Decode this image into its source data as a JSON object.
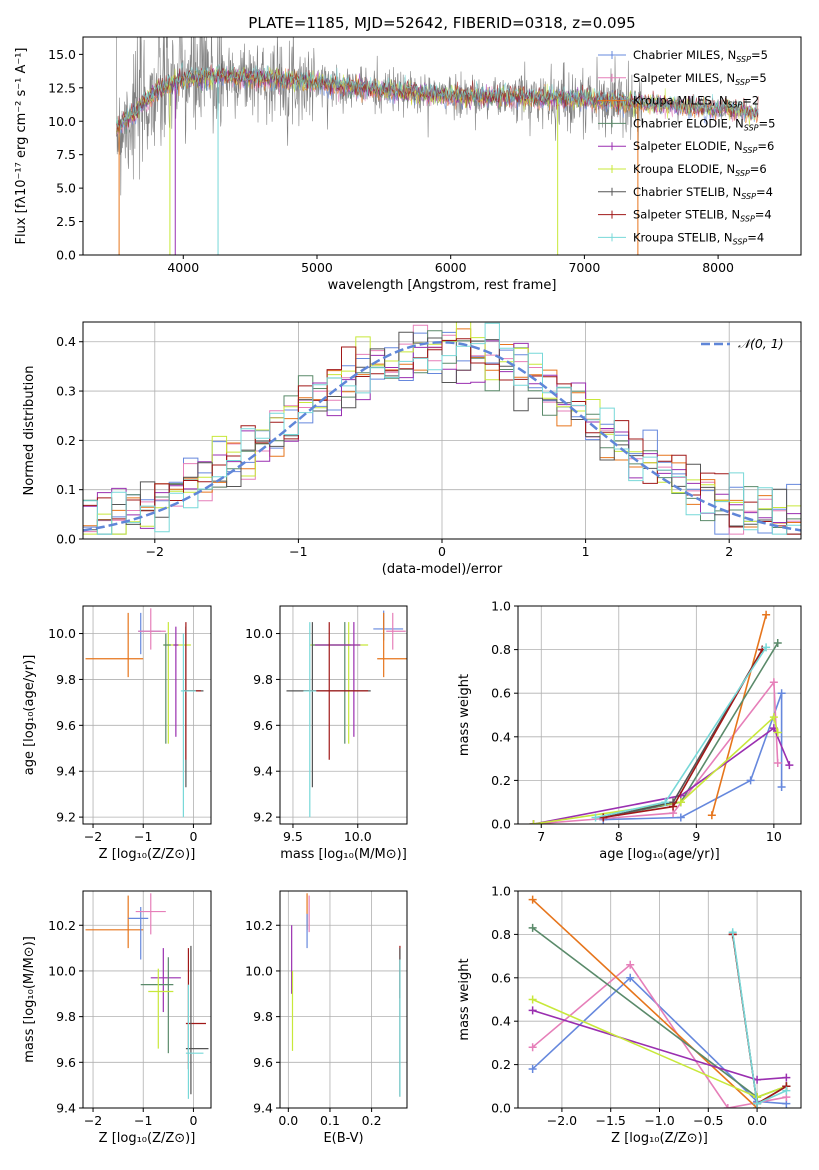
{
  "colors": {
    "chabrier_miles": "#6688dd",
    "salpeter_miles": "#e67fb9",
    "kroupa_miles": "#e6751c",
    "chabrier_elodie": "#5a8a6a",
    "salpeter_elodie": "#9a2fb0",
    "kroupa_elodie": "#c8e83a",
    "chabrier_stelib": "#555555",
    "salpeter_stelib": "#a01818",
    "kroupa_stelib": "#77d8d8",
    "grid": "#b0b0b0",
    "normal": "#5f86d8",
    "data": "#808080"
  },
  "legend_models": [
    {
      "key": "chabrier_miles",
      "label": "Chabrier MILES, N",
      "sub": "SSP",
      "tail": "=5"
    },
    {
      "key": "salpeter_miles",
      "label": "Salpeter MILES, N",
      "sub": "SSP",
      "tail": "=5"
    },
    {
      "key": "kroupa_miles",
      "label": "Kroupa MILES, N",
      "sub": "SSP",
      "tail": "=2"
    },
    {
      "key": "chabrier_elodie",
      "label": "Chabrier ELODIE, N",
      "sub": "SSP",
      "tail": "=5"
    },
    {
      "key": "salpeter_elodie",
      "label": "Salpeter ELODIE, N",
      "sub": "SSP",
      "tail": "=6"
    },
    {
      "key": "kroupa_elodie",
      "label": "Kroupa ELODIE, N",
      "sub": "SSP",
      "tail": "=6"
    },
    {
      "key": "chabrier_stelib",
      "label": "Chabrier STELIB, N",
      "sub": "SSP",
      "tail": "=4"
    },
    {
      "key": "salpeter_stelib",
      "label": "Salpeter STELIB, N",
      "sub": "SSP",
      "tail": "=4"
    },
    {
      "key": "kroupa_stelib",
      "label": "Kroupa STELIB, N",
      "sub": "SSP",
      "tail": "=4"
    }
  ],
  "chart_data": [
    {
      "id": "spectrum",
      "type": "line",
      "title": "PLATE=1185, MJD=52642, FIBERID=0318, z=0.095",
      "xlabel": "wavelength [Angstrom, rest frame]",
      "ylabel": "Flux [fλ10⁻¹⁷ erg cm⁻² s⁻¹ A⁻¹]",
      "xlim": [
        3250,
        8620
      ],
      "ylim": [
        0,
        16.3
      ],
      "xticks": [
        "4000",
        "5000",
        "6000",
        "7000",
        "8000"
      ],
      "xtick_values": [
        4000,
        5000,
        6000,
        7000,
        8000
      ],
      "yticks": [
        "0.0",
        "2.5",
        "5.0",
        "7.5",
        "10.0",
        "12.5",
        "15.0"
      ],
      "ytick_values": [
        0,
        2.5,
        5,
        7.5,
        10,
        12.5,
        15
      ],
      "grid": false,
      "legend_position": "right",
      "continuum_model": {
        "x": [
          3500,
          3600,
          3800,
          4000,
          4300,
          4600,
          5000,
          5500,
          6000,
          6500,
          7000,
          7500,
          8000,
          8300
        ],
        "y": [
          9.5,
          10.3,
          12.2,
          13.2,
          13.4,
          13.2,
          12.9,
          12.3,
          11.9,
          11.8,
          11.6,
          11.3,
          10.9,
          10.7
        ]
      }
    },
    {
      "id": "residuals",
      "type": "bar",
      "xlabel": "(data-model)/error",
      "ylabel": "Normed distribution",
      "xlim": [
        -2.5,
        2.5
      ],
      "ylim": [
        0,
        0.44
      ],
      "xticks": [
        "−2",
        "−1",
        "0",
        "1",
        "2"
      ],
      "xtick_values": [
        -2,
        -1,
        0,
        1,
        2
      ],
      "yticks": [
        "0.0",
        "0.1",
        "0.2",
        "0.3",
        "0.4"
      ],
      "ytick_values": [
        0,
        0.1,
        0.2,
        0.3,
        0.4
      ],
      "grid": true,
      "legend": "𝒩(0, 1)",
      "legend_position": "top-right",
      "normal_curve": {
        "mean": 0,
        "sigma": 1
      },
      "bin_width": 0.1
    },
    {
      "id": "age_vs_Z",
      "type": "scatter",
      "xlabel": "Z [log₁₀(Z/Z⊙)]",
      "ylabel": "age  [log₁₀(age/yr)]",
      "xlim": [
        -2.2,
        0.35
      ],
      "ylim": [
        9.17,
        10.12
      ],
      "xticks": [
        "−2",
        "−1",
        "0"
      ],
      "xtick_values": [
        -2,
        -1,
        0
      ],
      "yticks": [
        "9.2",
        "9.4",
        "9.6",
        "9.8",
        "10.0"
      ],
      "ytick_values": [
        9.2,
        9.4,
        9.6,
        9.8,
        10.0
      ],
      "grid": true,
      "points": [
        {
          "key": "kroupa_miles",
          "x": -1.3,
          "y": 9.89,
          "xerr": [
            0.85,
            0.3
          ],
          "yerr": [
            0.08,
            0.2
          ]
        },
        {
          "key": "chabrier_miles",
          "x": -1.05,
          "y": 10.01,
          "xerr": [
            0.05,
            0.4
          ],
          "yerr": [
            0.1,
            0.08
          ]
        },
        {
          "key": "salpeter_miles",
          "x": -0.85,
          "y": 10.01,
          "xerr": [
            0.25,
            0.3
          ],
          "yerr": [
            0.08,
            0.1
          ]
        },
        {
          "key": "kroupa_elodie",
          "x": -0.5,
          "y": 9.95,
          "xerr": [
            0.1,
            0.45
          ],
          "yerr": [
            0.43,
            0.1
          ]
        },
        {
          "key": "chabrier_elodie",
          "x": -0.55,
          "y": 9.95,
          "xerr": [
            0.05,
            0.1
          ],
          "yerr": [
            0.43,
            0.05
          ]
        },
        {
          "key": "salpeter_elodie",
          "x": -0.35,
          "y": 9.95,
          "xerr": [
            0.05,
            0.05
          ],
          "yerr": [
            0.4,
            0.08
          ]
        },
        {
          "key": "chabrier_stelib",
          "x": -0.15,
          "y": 9.75,
          "xerr": [
            0.05,
            0.35
          ],
          "yerr": [
            0.42,
            0.28
          ]
        },
        {
          "key": "salpeter_stelib",
          "x": -0.15,
          "y": 9.75,
          "xerr": [
            0.05,
            0.3
          ],
          "yerr": [
            0.3,
            0.3
          ]
        },
        {
          "key": "kroupa_stelib",
          "x": -0.2,
          "y": 9.75,
          "xerr": [
            0.05,
            0.25
          ],
          "yerr": [
            0.55,
            0.25
          ]
        }
      ]
    },
    {
      "id": "age_vs_mass",
      "type": "scatter",
      "xlabel": "mass [log₁₀(M/M⊙)]",
      "ylabel": "",
      "xlim": [
        9.4,
        10.38
      ],
      "ylim": [
        9.17,
        10.12
      ],
      "xticks": [
        "9.5",
        "10.0"
      ],
      "xtick_values": [
        9.5,
        10.0
      ],
      "yticks": [
        "9.2",
        "9.4",
        "9.6",
        "9.8",
        "10.0"
      ],
      "ytick_values": [
        9.2,
        9.4,
        9.6,
        9.8,
        10.0
      ],
      "grid": true,
      "points": [
        {
          "key": "chabrier_miles",
          "x": 10.2,
          "y": 10.02,
          "xerr": [
            0.08,
            0.15
          ],
          "yerr": [
            0.05,
            0.08
          ]
        },
        {
          "key": "salpeter_miles",
          "x": 10.27,
          "y": 10.01,
          "xerr": [
            0.05,
            0.1
          ],
          "yerr": [
            0.08,
            0.08
          ]
        },
        {
          "key": "kroupa_miles",
          "x": 10.2,
          "y": 9.89,
          "xerr": [
            0.05,
            0.2
          ],
          "yerr": [
            0.08,
            0.2
          ]
        },
        {
          "key": "kroupa_elodie",
          "x": 9.93,
          "y": 9.95,
          "xerr": [
            0.3,
            0.15
          ],
          "yerr": [
            0.43,
            0.1
          ]
        },
        {
          "key": "chabrier_elodie",
          "x": 9.9,
          "y": 9.95,
          "xerr": [
            0.25,
            0.05
          ],
          "yerr": [
            0.43,
            0.1
          ]
        },
        {
          "key": "salpeter_elodie",
          "x": 9.97,
          "y": 9.95,
          "xerr": [
            0.3,
            0.05
          ],
          "yerr": [
            0.4,
            0.1
          ]
        },
        {
          "key": "chabrier_stelib",
          "x": 9.65,
          "y": 9.75,
          "xerr": [
            0.2,
            0.45
          ],
          "yerr": [
            0.42,
            0.3
          ]
        },
        {
          "key": "salpeter_stelib",
          "x": 9.78,
          "y": 9.75,
          "xerr": [
            0.2,
            0.3
          ],
          "yerr": [
            0.3,
            0.3
          ]
        },
        {
          "key": "kroupa_stelib",
          "x": 9.63,
          "y": 9.75,
          "xerr": [
            0.05,
            0.05
          ],
          "yerr": [
            0.55,
            0.3
          ]
        }
      ]
    },
    {
      "id": "massweight_vs_age",
      "type": "line",
      "xlabel": "age  [log₁₀(age/yr)]",
      "ylabel": "mass weight",
      "xlim": [
        6.7,
        10.35
      ],
      "ylim": [
        0,
        1.0
      ],
      "xticks": [
        "7",
        "8",
        "9",
        "10"
      ],
      "xtick_values": [
        7,
        8,
        9,
        10
      ],
      "yticks": [
        "0.0",
        "0.2",
        "0.4",
        "0.6",
        "0.8",
        "1.0"
      ],
      "ytick_values": [
        0,
        0.2,
        0.4,
        0.6,
        0.8,
        1.0
      ],
      "grid": true,
      "series": [
        {
          "key": "chabrier_miles",
          "x": [
            7.8,
            8.8,
            9.7,
            10.1,
            10.1
          ],
          "y": [
            0.02,
            0.03,
            0.2,
            0.6,
            0.17
          ]
        },
        {
          "key": "salpeter_miles",
          "x": [
            6.9,
            8.7,
            10.0,
            10.05
          ],
          "y": [
            0.0,
            0.05,
            0.65,
            0.28
          ]
        },
        {
          "key": "kroupa_miles",
          "x": [
            9.2,
            9.9
          ],
          "y": [
            0.04,
            0.96
          ]
        },
        {
          "key": "chabrier_elodie",
          "x": [
            7.8,
            8.8,
            10.05
          ],
          "y": [
            0.03,
            0.1,
            0.83
          ]
        },
        {
          "key": "salpeter_elodie",
          "x": [
            6.9,
            8.8,
            10.0,
            10.2
          ],
          "y": [
            0.0,
            0.13,
            0.44,
            0.27
          ]
        },
        {
          "key": "kroupa_elodie",
          "x": [
            6.9,
            8.8,
            10.0,
            10.05
          ],
          "y": [
            0.0,
            0.1,
            0.49,
            0.42
          ]
        },
        {
          "key": "chabrier_stelib",
          "x": [
            7.8,
            8.7,
            9.85
          ],
          "y": [
            0.03,
            0.1,
            0.8
          ]
        },
        {
          "key": "salpeter_stelib",
          "x": [
            7.8,
            8.7,
            9.85
          ],
          "y": [
            0.03,
            0.08,
            0.8
          ]
        },
        {
          "key": "kroupa_stelib",
          "x": [
            7.7,
            8.6,
            9.9
          ],
          "y": [
            0.03,
            0.1,
            0.81
          ]
        }
      ]
    },
    {
      "id": "mass_vs_Z",
      "type": "scatter",
      "xlabel": "Z [log₁₀(Z/Z⊙)]",
      "ylabel": "mass [log₁₀(M/M⊙)]",
      "xlim": [
        -2.2,
        0.35
      ],
      "ylim": [
        9.4,
        10.35
      ],
      "xticks": [
        "−2",
        "−1",
        "0"
      ],
      "xtick_values": [
        -2,
        -1,
        0
      ],
      "yticks": [
        "9.4",
        "9.6",
        "9.8",
        "10.0",
        "10.2"
      ],
      "ytick_values": [
        9.4,
        9.6,
        9.8,
        10.0,
        10.2
      ],
      "grid": true,
      "points": [
        {
          "key": "kroupa_miles",
          "x": -1.3,
          "y": 10.18,
          "xerr": [
            0.85,
            0.3
          ],
          "yerr": [
            0.08,
            0.15
          ]
        },
        {
          "key": "chabrier_miles",
          "x": -1.05,
          "y": 10.23,
          "xerr": [
            0.25,
            0.15
          ],
          "yerr": [
            0.18,
            0.05
          ]
        },
        {
          "key": "salpeter_miles",
          "x": -0.85,
          "y": 10.26,
          "xerr": [
            0.3,
            0.3
          ],
          "yerr": [
            0.1,
            0.08
          ]
        },
        {
          "key": "salpeter_elodie",
          "x": -0.6,
          "y": 9.97,
          "xerr": [
            0.25,
            0.35
          ],
          "yerr": [
            0.15,
            0.13
          ]
        },
        {
          "key": "chabrier_elodie",
          "x": -0.5,
          "y": 9.94,
          "xerr": [
            0.55,
            0.1
          ],
          "yerr": [
            0.3,
            0.12
          ]
        },
        {
          "key": "kroupa_elodie",
          "x": -0.7,
          "y": 9.91,
          "xerr": [
            0.2,
            0.3
          ],
          "yerr": [
            0.25,
            0.1
          ]
        },
        {
          "key": "salpeter_stelib",
          "x": -0.1,
          "y": 9.77,
          "xerr": [
            0.05,
            0.35
          ],
          "yerr": [
            0.2,
            0.33
          ]
        },
        {
          "key": "chabrier_stelib",
          "x": -0.05,
          "y": 9.66,
          "xerr": [
            0.1,
            0.35
          ],
          "yerr": [
            0.2,
            0.45
          ]
        },
        {
          "key": "kroupa_stelib",
          "x": -0.1,
          "y": 9.64,
          "xerr": [
            0.05,
            0.3
          ],
          "yerr": [
            0.2,
            0.3
          ]
        }
      ]
    },
    {
      "id": "mass_vs_ebv",
      "type": "scatter",
      "xlabel": "E(B-V)",
      "ylabel": "",
      "xlim": [
        -0.02,
        0.285
      ],
      "ylim": [
        9.4,
        10.35
      ],
      "xticks": [
        "0.0",
        "0.1",
        "0.2"
      ],
      "xtick_values": [
        0.0,
        0.1,
        0.2
      ],
      "yticks": [
        "9.4",
        "9.6",
        "9.8",
        "10.0",
        "10.2"
      ],
      "ytick_values": [
        9.4,
        9.6,
        9.8,
        10.0,
        10.2
      ],
      "grid": true,
      "points": [
        {
          "key": "salpeter_elodie",
          "x": 0.008,
          "y": 10.05,
          "yerr": [
            0.15,
            0.15
          ]
        },
        {
          "key": "kroupa_elodie",
          "x": 0.01,
          "y": 9.9,
          "yerr": [
            0.25,
            0.1
          ]
        },
        {
          "key": "kroupa_miles",
          "x": 0.045,
          "y": 10.26,
          "yerr": [
            0.08,
            0.08
          ]
        },
        {
          "key": "salpeter_miles",
          "x": 0.05,
          "y": 10.27,
          "yerr": [
            0.1,
            0.06
          ]
        },
        {
          "key": "chabrier_miles",
          "x": 0.045,
          "y": 10.2,
          "yerr": [
            0.1,
            0.05
          ]
        },
        {
          "key": "salpeter_stelib",
          "x": 0.268,
          "y": 10.08,
          "yerr": [
            0.2,
            0.03
          ]
        },
        {
          "key": "chabrier_stelib",
          "x": 0.268,
          "y": 9.9,
          "yerr": [
            0.45,
            0.2
          ]
        },
        {
          "key": "kroupa_stelib",
          "x": 0.268,
          "y": 9.8,
          "yerr": [
            0.35,
            0.25
          ]
        }
      ]
    },
    {
      "id": "massweight_vs_Z",
      "type": "line",
      "xlabel": "Z [log₁₀(Z/Z⊙)]",
      "ylabel": "mass weight",
      "xlim": [
        -2.45,
        0.45
      ],
      "ylim": [
        0,
        1.0
      ],
      "xticks": [
        "−2.0",
        "−1.5",
        "−1.0",
        "−0.5",
        "0.0"
      ],
      "xtick_values": [
        -2.0,
        -1.5,
        -1.0,
        -0.5,
        0.0
      ],
      "yticks": [
        "0.0",
        "0.2",
        "0.4",
        "0.6",
        "0.8",
        "1.0"
      ],
      "ytick_values": [
        0,
        0.2,
        0.4,
        0.6,
        0.8,
        1.0
      ],
      "grid": true,
      "series": [
        {
          "key": "chabrier_miles",
          "x": [
            -2.3,
            -1.3,
            0.0,
            0.3
          ],
          "y": [
            0.18,
            0.6,
            0.03,
            0.02
          ]
        },
        {
          "key": "salpeter_miles",
          "x": [
            -2.3,
            -1.3,
            -0.3,
            0.3
          ],
          "y": [
            0.28,
            0.66,
            0.0,
            0.05
          ]
        },
        {
          "key": "kroupa_miles",
          "x": [
            -2.3,
            0.0
          ],
          "y": [
            0.96,
            0.0
          ]
        },
        {
          "key": "chabrier_elodie",
          "x": [
            -2.3,
            0.0,
            0.3
          ],
          "y": [
            0.83,
            0.05,
            0.1
          ]
        },
        {
          "key": "salpeter_elodie",
          "x": [
            -2.3,
            0.0,
            0.3
          ],
          "y": [
            0.45,
            0.13,
            0.14
          ]
        },
        {
          "key": "kroupa_elodie",
          "x": [
            -2.3,
            0.0,
            0.3
          ],
          "y": [
            0.5,
            0.05,
            0.1
          ]
        },
        {
          "key": "chabrier_stelib",
          "x": [
            -0.25,
            0.0,
            0.3
          ],
          "y": [
            0.8,
            0.02,
            0.1
          ]
        },
        {
          "key": "salpeter_stelib",
          "x": [
            -0.25,
            0.0,
            0.3
          ],
          "y": [
            0.8,
            0.02,
            0.1
          ]
        },
        {
          "key": "kroupa_stelib",
          "x": [
            -0.25,
            0.0,
            0.3
          ],
          "y": [
            0.81,
            0.02,
            0.08
          ]
        }
      ]
    }
  ]
}
